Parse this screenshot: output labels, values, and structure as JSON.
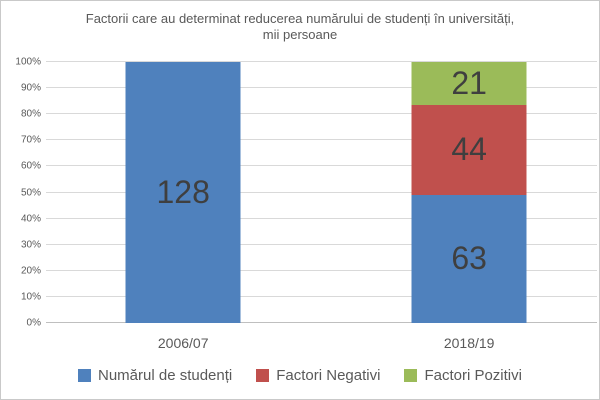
{
  "chart_data": {
    "type": "bar",
    "subtype": "stacked-100-percent-column",
    "title": "Factorii care au determinat reducerea numărului de studenți în universități, mii persoane",
    "title_line1": "Factorii care au determinat reducerea numărului de studenți în universități,",
    "title_line2": "mii persoane",
    "categories": [
      "2006/07",
      "2018/19"
    ],
    "series": [
      {
        "name": "Numărul de studenți",
        "color": "#4F81BD",
        "values": [
          128,
          63
        ]
      },
      {
        "name": "Factori Negativi",
        "color": "#C0504D",
        "values": [
          0,
          44
        ]
      },
      {
        "name": "Factori Pozitivi",
        "color": "#9BBB59",
        "values": [
          0,
          21
        ]
      }
    ],
    "category_totals": [
      128,
      128
    ],
    "y_ticks": [
      "0%",
      "10%",
      "20%",
      "30%",
      "40%",
      "50%",
      "60%",
      "70%",
      "80%",
      "90%",
      "100%"
    ],
    "ylim": [
      0,
      100
    ],
    "grid": true,
    "legend_position": "bottom",
    "xlabel": "",
    "ylabel": ""
  },
  "colors": {
    "text": "#595959",
    "value_label": "#3f3f3f",
    "gridline": "#d9d9d9",
    "axis_line": "#bfbfbf",
    "frame_border": "#c9c9c9",
    "background": "#ffffff"
  }
}
